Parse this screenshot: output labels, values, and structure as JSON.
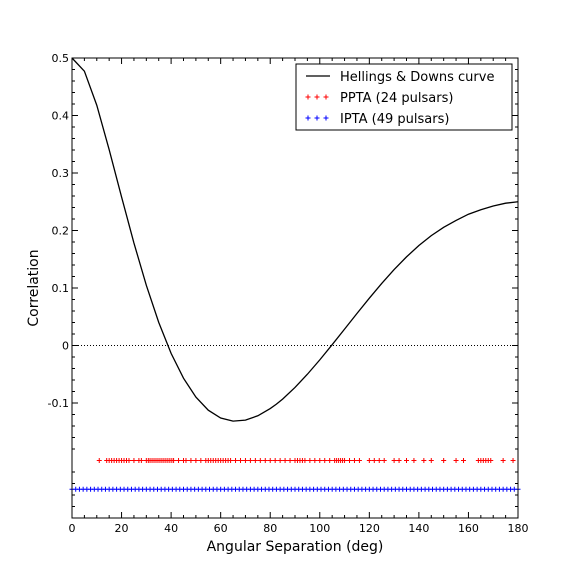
{
  "chart_data": {
    "type": "line",
    "xlabel": "Angular Separation (deg)",
    "ylabel": "Correlation",
    "xlim": [
      0,
      180
    ],
    "ylim": [
      -0.3,
      0.5
    ],
    "x_ticks": [
      0,
      20,
      40,
      60,
      80,
      100,
      120,
      140,
      160,
      180
    ],
    "x_tick_labels": [
      "0",
      "20",
      "40",
      "60",
      "80",
      "100",
      "120",
      "140",
      "160",
      "180"
    ],
    "y_ticks": [
      -0.1,
      0,
      0.1,
      0.2,
      0.3,
      0.4,
      0.5
    ],
    "y_tick_labels": [
      "-0.1",
      "0",
      "0.1",
      "0.2",
      "0.3",
      "0.4",
      "0.5"
    ],
    "grid": false,
    "legend_position": "top-right",
    "zero_line": {
      "y": 0,
      "style": "dotted"
    },
    "series": [
      {
        "name": "Hellings & Downs curve",
        "kind": "line",
        "color": "#000000",
        "x": [
          0,
          5,
          10,
          15,
          20,
          25,
          30,
          35,
          40,
          45,
          50,
          55,
          60,
          65,
          70,
          75,
          80,
          82.5,
          85,
          90,
          95,
          100,
          105,
          110,
          115,
          120,
          125,
          130,
          135,
          140,
          145,
          150,
          155,
          160,
          165,
          170,
          175,
          180
        ],
        "y": [
          0.5,
          0.4771,
          0.4178,
          0.3406,
          0.2584,
          0.1782,
          0.1046,
          0.0402,
          -0.0137,
          -0.0569,
          -0.0897,
          -0.1125,
          -0.1261,
          -0.1315,
          -0.1298,
          -0.1222,
          -0.1096,
          -0.102,
          -0.0932,
          -0.0729,
          -0.05,
          -0.025,
          0.0014,
          0.0285,
          0.0556,
          0.0823,
          0.1079,
          0.132,
          0.1541,
          0.1739,
          0.1911,
          0.2056,
          0.2175,
          0.2283,
          0.2361,
          0.2426,
          0.2475,
          0.25
        ]
      },
      {
        "name": "PPTA (24 pulsars)",
        "kind": "scatter-marker",
        "marker": "+",
        "color": "#ff0000",
        "y_level": -0.2,
        "x": [
          11,
          14,
          15,
          16,
          17,
          18,
          19,
          20,
          21,
          22,
          23,
          25,
          27,
          28,
          30,
          30.8,
          31.5,
          32.3,
          33.1,
          33.9,
          34.7,
          35.5,
          36.3,
          37.1,
          37.9,
          38.7,
          39.5,
          40.3,
          41,
          43,
          45,
          46,
          48,
          50,
          52,
          54,
          55,
          56,
          57,
          58,
          59,
          60,
          61,
          62,
          63,
          64,
          66,
          68,
          70,
          72,
          74,
          76,
          78,
          80,
          82,
          84,
          86,
          88,
          90,
          91,
          92,
          93,
          94,
          96,
          98,
          100,
          102,
          104,
          106,
          106.8,
          107.6,
          108.4,
          109.2,
          110,
          112,
          114,
          116,
          120,
          122,
          124,
          126,
          130,
          132,
          135,
          138,
          142,
          145,
          150,
          155,
          158,
          164,
          165,
          166,
          167,
          168,
          169,
          174,
          178
        ]
      },
      {
        "name": "IPTA (49 pulsars)",
        "kind": "scatter-marker",
        "marker": "+",
        "color": "#0000ff",
        "y_level": -0.25,
        "x": [
          0,
          1.5,
          3,
          4.5,
          6,
          7.5,
          9,
          10.5,
          12,
          13.5,
          15,
          16.5,
          18,
          19.5,
          21,
          22.5,
          24,
          25.5,
          27,
          28.5,
          30,
          31.5,
          33,
          34.5,
          36,
          37.5,
          39,
          40.5,
          42,
          43.5,
          45,
          46.5,
          48,
          49.5,
          51,
          52.5,
          54,
          55.5,
          57,
          58.5,
          60,
          61.5,
          63,
          64.5,
          66,
          67.5,
          69,
          70.5,
          72,
          73.5,
          75,
          76.5,
          78,
          79.5,
          81,
          82.5,
          84,
          85.5,
          87,
          88.5,
          90,
          91.5,
          93,
          94.5,
          96,
          97.5,
          99,
          100.5,
          102,
          103.5,
          105,
          106.5,
          108,
          109.5,
          111,
          112.5,
          114,
          115.5,
          117,
          118.5,
          120,
          121.5,
          123,
          124.5,
          126,
          127.5,
          129,
          130.5,
          132,
          133.5,
          135,
          136.5,
          138,
          139.5,
          141,
          142.5,
          144,
          145.5,
          147,
          148.5,
          150,
          151.5,
          153,
          154.5,
          156,
          157.5,
          159,
          160.5,
          162,
          163.5,
          165,
          166.5,
          168,
          169.5,
          171,
          172.5,
          174,
          175.5,
          177,
          178.5,
          180
        ]
      }
    ]
  }
}
